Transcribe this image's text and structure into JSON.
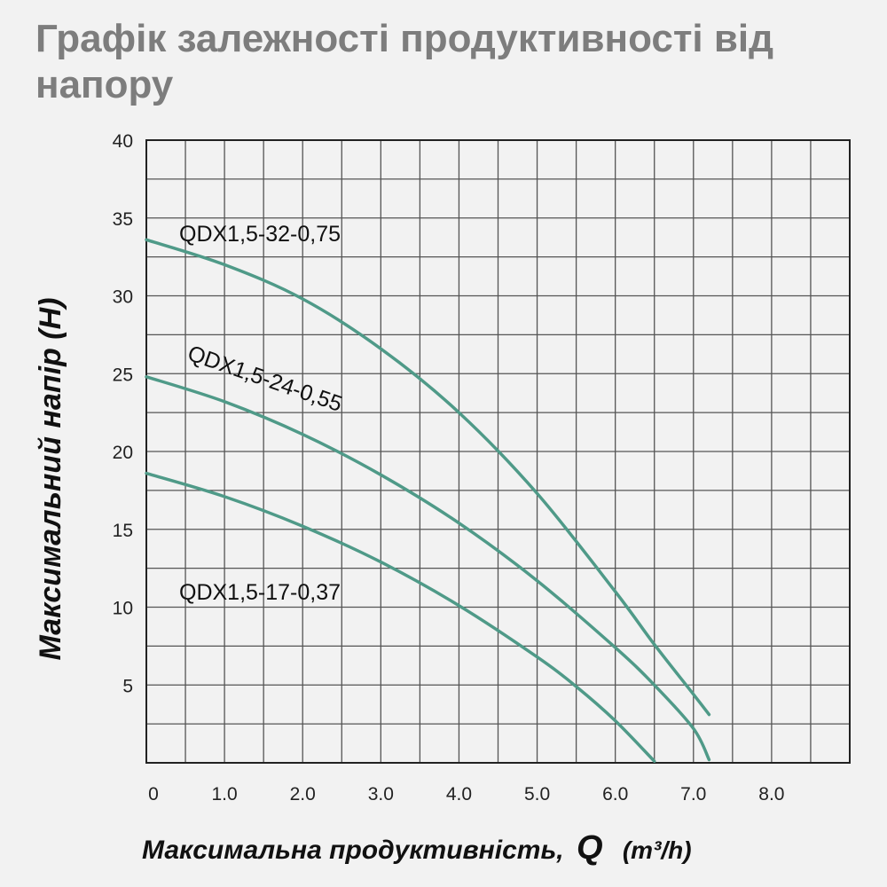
{
  "chart_data": {
    "type": "line",
    "title": "Графік залежності продуктивності від напору",
    "xlabel": "Максимальна продуктивність,",
    "xlabel_symbol": "Q",
    "xlabel_unit": "(m³/h)",
    "ylabel": "Максимальний напір (Н)",
    "xlim": [
      0,
      9.0
    ],
    "ylim": [
      0,
      40
    ],
    "x_ticks": [
      "0",
      "1.0",
      "2.0",
      "3.0",
      "4.0",
      "5.0",
      "6.0",
      "7.0",
      "8.0"
    ],
    "x_tick_values": [
      0,
      1,
      2,
      3,
      4,
      5,
      6,
      7,
      8
    ],
    "y_ticks": [
      "5",
      "10",
      "15",
      "20",
      "25",
      "30",
      "35",
      "40"
    ],
    "y_tick_values": [
      5,
      10,
      15,
      20,
      25,
      30,
      35,
      40
    ],
    "grid": true,
    "line_color": "#4f9a88",
    "series": [
      {
        "name": "QDX1,5-32-0,75",
        "x": [
          0,
          1,
          2,
          3,
          4,
          5,
          6,
          6.5,
          7.0,
          7.2
        ],
        "y": [
          33.6,
          32.0,
          29.8,
          26.6,
          22.5,
          17.3,
          11.0,
          7.6,
          4.4,
          3.1
        ]
      },
      {
        "name": "QDX1,5-24-0,55",
        "x": [
          0,
          1,
          2,
          3,
          4,
          5,
          6,
          6.5,
          7.0,
          7.2
        ],
        "y": [
          24.8,
          23.2,
          21.1,
          18.5,
          15.4,
          11.7,
          7.4,
          5.0,
          2.2,
          0.2
        ]
      },
      {
        "name": "QDX1,5-17-0,37",
        "x": [
          0,
          1,
          2,
          3,
          4,
          5,
          5.5,
          6.0,
          6.5
        ],
        "y": [
          18.6,
          17.1,
          15.2,
          12.9,
          10.1,
          6.8,
          4.9,
          2.7,
          0.1
        ]
      }
    ]
  }
}
